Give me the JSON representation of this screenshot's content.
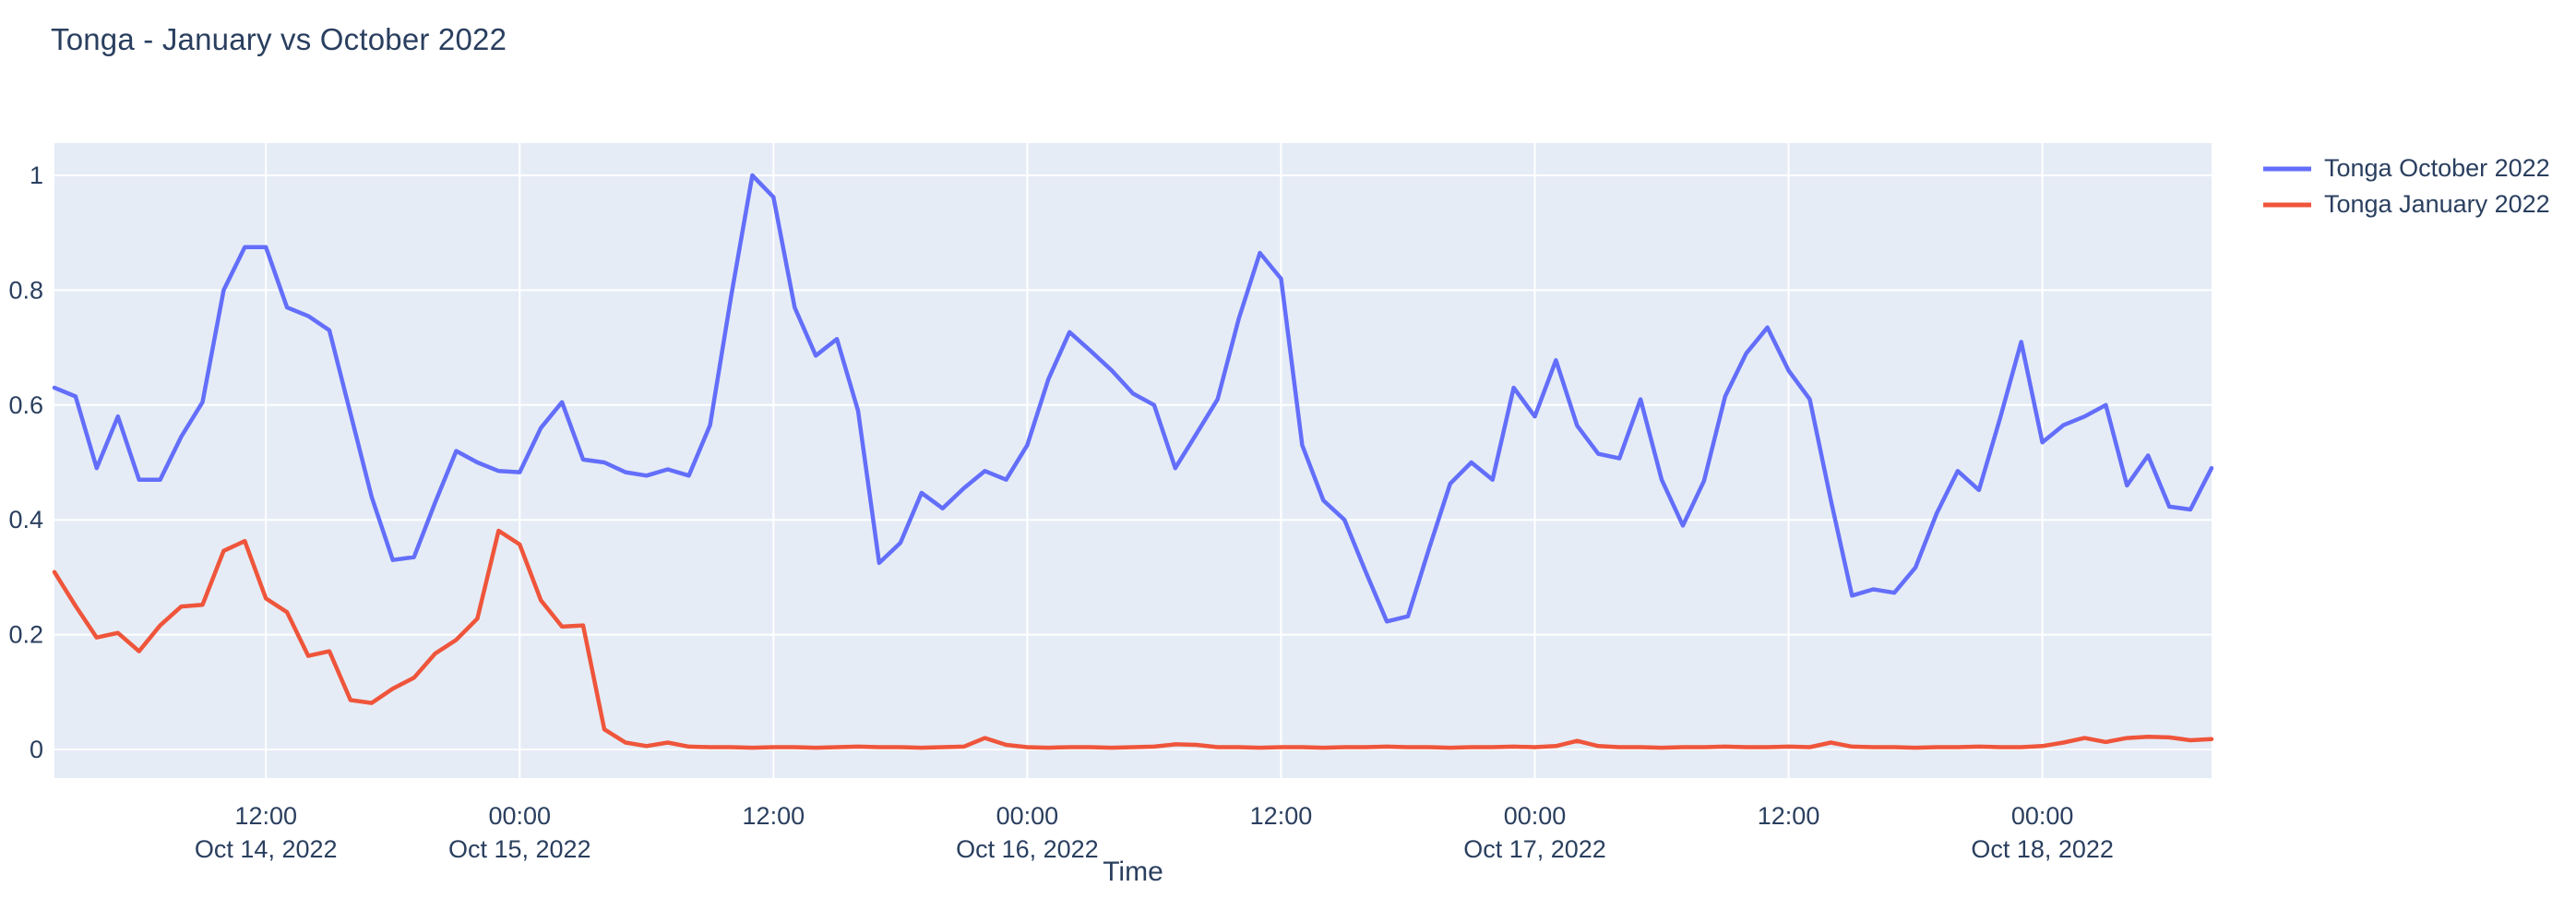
{
  "page": {
    "title": "Tonga - January vs October 2022"
  },
  "chart_data": {
    "type": "line",
    "title": "Tonga - January vs October 2022",
    "xlabel": "Time",
    "ylabel": "",
    "x_start": "2022-10-14 02:00",
    "x_end": "2022-10-18 08:00",
    "x_step": "1 hour",
    "ylim": [
      -0.05,
      1.06
    ],
    "grid": true,
    "legend_position": "top-right-outside",
    "plot_bg_color": "#e5ecf6",
    "grid_color": "#ffffff",
    "text_color": "#2a3f5f",
    "y_ticks": [
      "0",
      "0.2",
      "0.4",
      "0.6",
      "0.8",
      "1"
    ],
    "x_ticks": [
      {
        "time": "12:00",
        "date": "Oct 14, 2022",
        "hour_index": 10
      },
      {
        "time": "00:00",
        "date": "Oct 15, 2022",
        "hour_index": 22
      },
      {
        "time": "12:00",
        "date": "",
        "hour_index": 34
      },
      {
        "time": "00:00",
        "date": "Oct 16, 2022",
        "hour_index": 46
      },
      {
        "time": "12:00",
        "date": "",
        "hour_index": 58
      },
      {
        "time": "00:00",
        "date": "Oct 17, 2022",
        "hour_index": 70
      },
      {
        "time": "12:00",
        "date": "",
        "hour_index": 82
      },
      {
        "time": "00:00",
        "date": "Oct 18, 2022",
        "hour_index": 94
      }
    ],
    "series": [
      {
        "name": "Tonga October 2022",
        "color": "#636efa",
        "values": [
          0.63,
          0.615,
          0.49,
          0.58,
          0.47,
          0.47,
          0.545,
          0.605,
          0.8,
          0.875,
          0.875,
          0.77,
          0.755,
          0.73,
          0.585,
          0.44,
          0.33,
          0.335,
          0.43,
          0.52,
          0.5,
          0.485,
          0.483,
          0.56,
          0.605,
          0.505,
          0.5,
          0.483,
          0.477,
          0.488,
          0.477,
          0.565,
          0.79,
          1.0,
          0.962,
          0.77,
          0.686,
          0.715,
          0.59,
          0.325,
          0.36,
          0.447,
          0.42,
          0.455,
          0.485,
          0.47,
          0.53,
          0.645,
          0.727,
          0.694,
          0.66,
          0.62,
          0.6,
          0.49,
          0.55,
          0.61,
          0.75,
          0.865,
          0.82,
          0.53,
          0.434,
          0.4,
          0.31,
          0.223,
          0.232,
          0.35,
          0.463,
          0.5,
          0.47,
          0.63,
          0.58,
          0.678,
          0.564,
          0.515,
          0.507,
          0.61,
          0.47,
          0.39,
          0.468,
          0.615,
          0.69,
          0.735,
          0.66,
          0.61,
          0.434,
          0.268,
          0.279,
          0.273,
          0.317,
          0.411,
          0.485,
          0.452,
          0.577,
          0.71,
          0.535,
          0.565,
          0.58,
          0.6,
          0.46,
          0.512,
          0.423,
          0.418,
          0.49
        ]
      },
      {
        "name": "Tonga January 2022",
        "color": "#ef553b",
        "values": [
          0.309,
          0.25,
          0.195,
          0.203,
          0.171,
          0.216,
          0.249,
          0.252,
          0.346,
          0.363,
          0.263,
          0.239,
          0.163,
          0.171,
          0.086,
          0.081,
          0.106,
          0.125,
          0.167,
          0.191,
          0.228,
          0.381,
          0.357,
          0.26,
          0.214,
          0.216,
          0.035,
          0.012,
          0.006,
          0.012,
          0.005,
          0.004,
          0.004,
          0.003,
          0.004,
          0.004,
          0.003,
          0.004,
          0.005,
          0.004,
          0.004,
          0.003,
          0.004,
          0.005,
          0.02,
          0.008,
          0.004,
          0.003,
          0.004,
          0.004,
          0.003,
          0.004,
          0.005,
          0.009,
          0.008,
          0.004,
          0.004,
          0.003,
          0.004,
          0.004,
          0.003,
          0.004,
          0.004,
          0.005,
          0.004,
          0.004,
          0.003,
          0.004,
          0.004,
          0.005,
          0.004,
          0.006,
          0.015,
          0.006,
          0.004,
          0.004,
          0.003,
          0.004,
          0.004,
          0.005,
          0.004,
          0.004,
          0.005,
          0.004,
          0.012,
          0.005,
          0.004,
          0.004,
          0.003,
          0.004,
          0.004,
          0.005,
          0.004,
          0.004,
          0.006,
          0.012,
          0.02,
          0.013,
          0.02,
          0.022,
          0.021,
          0.016,
          0.018
        ]
      }
    ]
  }
}
